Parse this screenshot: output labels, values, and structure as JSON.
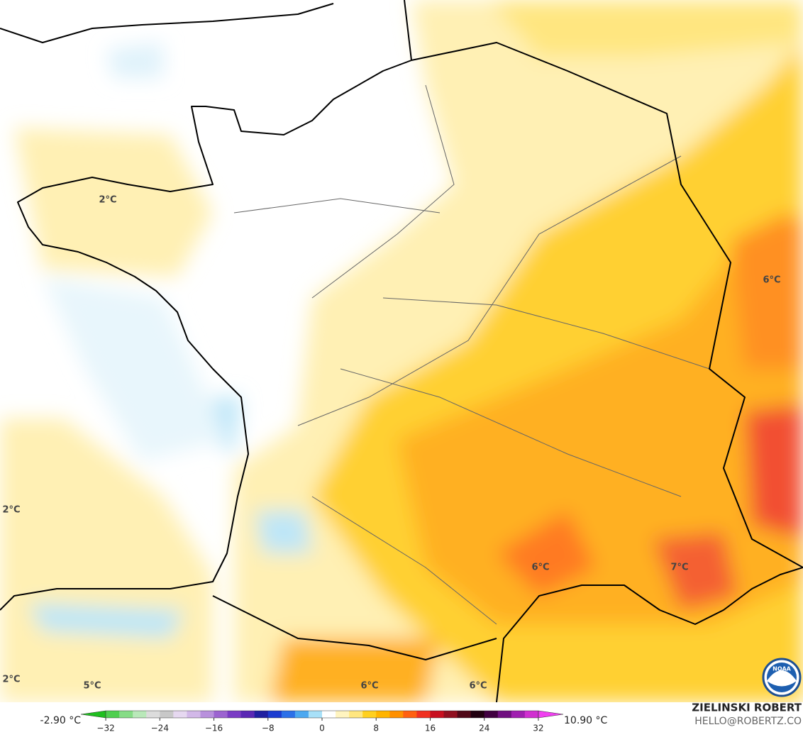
{
  "map": {
    "labels": [
      "2°C",
      "2°C",
      "2°C",
      "5°C",
      "6°C",
      "6°C",
      "6°C",
      "7°C",
      "6°C"
    ]
  },
  "colorbar": {
    "min_label": "-2.90 °C",
    "max_label": "10.90 °C",
    "range": [
      -34,
      34
    ],
    "ticks": [
      {
        "value": -32,
        "label": "−32"
      },
      {
        "value": -24,
        "label": "−24"
      },
      {
        "value": -16,
        "label": "−16"
      },
      {
        "value": -8,
        "label": "−8"
      },
      0,
      8,
      16,
      24,
      32
    ],
    "colors": [
      "#1fbf1f",
      "#4fcf4f",
      "#86dc86",
      "#b9e8b9",
      "#dcdcdc",
      "#c8c8c8",
      "#e6d8f0",
      "#d2b8e8",
      "#b890dc",
      "#9c64d0",
      "#7a3cc4",
      "#5a28b4",
      "#2020a0",
      "#1c3cd0",
      "#2c70e8",
      "#4ca8f0",
      "#a8e0f8",
      "#ffffff",
      "#fff4c0",
      "#ffe680",
      "#ffd020",
      "#ffb400",
      "#ff9000",
      "#ff6010",
      "#f03020",
      "#c81020",
      "#901020",
      "#500818",
      "#200010",
      "#400040",
      "#701080",
      "#a020b0",
      "#d030d0",
      "#f040f0"
    ]
  },
  "credit": {
    "author": "ZIELINSKI ROBERT",
    "email": "HELLO@ROBERTZ.CO",
    "logo": "NOAA"
  }
}
